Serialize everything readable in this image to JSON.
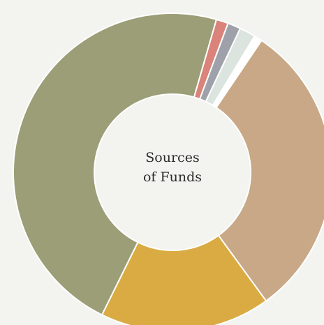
{
  "chart_data": {
    "type": "pie",
    "title": "Sources of Funds",
    "center_label_lines": [
      "Sources",
      "of Funds"
    ],
    "start_angle_deg": -56,
    "slices": [
      {
        "value": 30.0,
        "color": "#c8a886"
      },
      {
        "value": 17.0,
        "color": "#d9ab42"
      },
      {
        "value": 46.3,
        "color": "#9b9e76"
      },
      {
        "value": 1.2,
        "color": "#d9837b"
      },
      {
        "value": 1.3,
        "color": "#9fa1aa"
      },
      {
        "value": 1.6,
        "color": "#dce4df"
      },
      {
        "value": 0.8,
        "color": "#ffffff"
      }
    ],
    "legend": "none"
  }
}
